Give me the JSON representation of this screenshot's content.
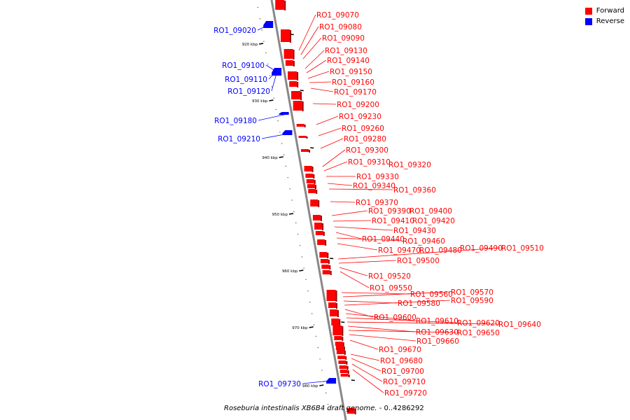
{
  "legend": [
    {
      "label": "Forward",
      "color": "#ff0000"
    },
    {
      "label": "Reverse",
      "color": "#0000ff"
    }
  ],
  "caption": {
    "organism": "Roseburia intestinalis XB6B4 draft genome.",
    "range": " - 0..4286292"
  },
  "colors": {
    "forward": "#ff0000",
    "reverse": "#0000ff",
    "axis": "#888888"
  },
  "ticks": [
    {
      "label": "920 kbp",
      "kbp": 920
    },
    {
      "label": "930 kbp",
      "kbp": 930
    },
    {
      "label": "940 kbp",
      "kbp": 940
    },
    {
      "label": "950 kbp",
      "kbp": 950
    },
    {
      "label": "960 kbp",
      "kbp": 960
    },
    {
      "label": "970 kbp",
      "kbp": 970
    },
    {
      "label": "980 kbp",
      "kbp": 980
    }
  ],
  "reverse_genes": [
    {
      "label": "RO1_09020"
    },
    {
      "label": "RO1_09100"
    },
    {
      "label": "RO1_09110"
    },
    {
      "label": "RO1_09120"
    },
    {
      "label": "RO1_09180"
    },
    {
      "label": "RO1_09210"
    },
    {
      "label": "RO1_09730"
    }
  ],
  "forward_genes": [
    {
      "label": "RO1_09070"
    },
    {
      "label": "RO1_09080"
    },
    {
      "label": "RO1_09090"
    },
    {
      "label": "RO1_09130"
    },
    {
      "label": "RO1_09140"
    },
    {
      "label": "RO1_09150"
    },
    {
      "label": "RO1_09160"
    },
    {
      "label": "RO1_09170"
    },
    {
      "label": "RO1_09200"
    },
    {
      "label": "RO1_09230"
    },
    {
      "label": "RO1_09260"
    },
    {
      "label": "RO1_09280"
    },
    {
      "label": "RO1_09300"
    },
    {
      "label": "RO1_09310"
    },
    {
      "label": "RO1_09320"
    },
    {
      "label": "RO1_09330"
    },
    {
      "label": "RO1_09340"
    },
    {
      "label": "RO1_09360"
    },
    {
      "label": "RO1_09370"
    },
    {
      "label": "RO1_09390"
    },
    {
      "label": "RO1_09400"
    },
    {
      "label": "RO1_09410"
    },
    {
      "label": "RO1_09420"
    },
    {
      "label": "RO1_09430"
    },
    {
      "label": "RO1_09440"
    },
    {
      "label": "RO1_09460"
    },
    {
      "label": "RO1_09470"
    },
    {
      "label": "RO1_09480"
    },
    {
      "label": "RO1_09490"
    },
    {
      "label": "RO1_09510"
    },
    {
      "label": "RO1_09500"
    },
    {
      "label": "RO1_09520"
    },
    {
      "label": "RO1_09550"
    },
    {
      "label": "RO1_09560"
    },
    {
      "label": "RO1_09570"
    },
    {
      "label": "RO1_09580"
    },
    {
      "label": "RO1_09590"
    },
    {
      "label": "RO1_09600"
    },
    {
      "label": "RO1_09610"
    },
    {
      "label": "RO1_09620"
    },
    {
      "label": "RO1_09640"
    },
    {
      "label": "RO1_09630"
    },
    {
      "label": "RO1_09650"
    },
    {
      "label": "RO1_09660"
    },
    {
      "label": "RO1_09670"
    },
    {
      "label": "RO1_09680"
    },
    {
      "label": "RO1_09700"
    },
    {
      "label": "RO1_09710"
    },
    {
      "label": "RO1_09720"
    }
  ]
}
